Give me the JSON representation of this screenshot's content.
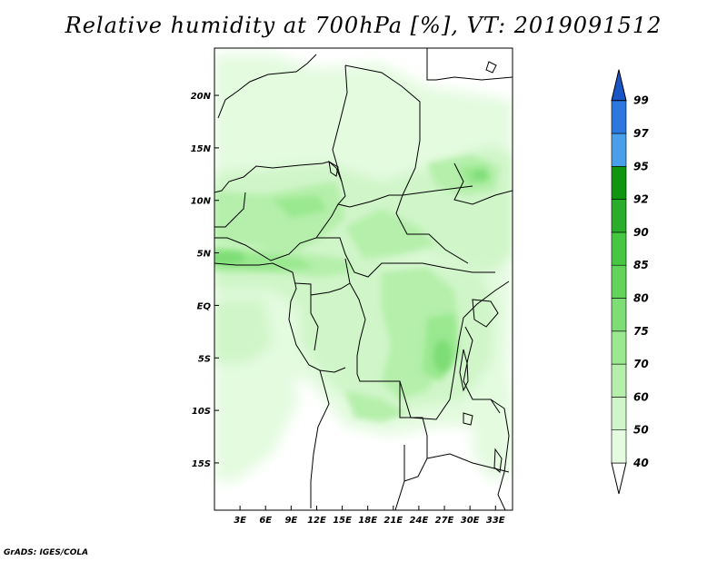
{
  "title": "Relative humidity at 700hPa [%], VT: 2019091512",
  "credit": "GrADS: IGES/COLA",
  "map": {
    "variable": "Relative humidity",
    "level": "700hPa",
    "units": "%",
    "valid_time": "2019091512",
    "lon_range": [
      0,
      35
    ],
    "lat_range": [
      -19.5,
      24.5
    ],
    "lat_ticks": [
      {
        "value": 20,
        "label": "20N"
      },
      {
        "value": 15,
        "label": "15N"
      },
      {
        "value": 10,
        "label": "10N"
      },
      {
        "value": 5,
        "label": "5N"
      },
      {
        "value": 0,
        "label": "EQ"
      },
      {
        "value": -5,
        "label": "5S"
      },
      {
        "value": -10,
        "label": "10S"
      },
      {
        "value": -15,
        "label": "15S"
      }
    ],
    "lon_ticks": [
      {
        "value": 3,
        "label": "3E"
      },
      {
        "value": 6,
        "label": "6E"
      },
      {
        "value": 9,
        "label": "9E"
      },
      {
        "value": 12,
        "label": "12E"
      },
      {
        "value": 15,
        "label": "15E"
      },
      {
        "value": 18,
        "label": "18E"
      },
      {
        "value": 21,
        "label": "21E"
      },
      {
        "value": 24,
        "label": "24E"
      },
      {
        "value": 27,
        "label": "27E"
      },
      {
        "value": 30,
        "label": "30E"
      },
      {
        "value": 33,
        "label": "33E"
      }
    ]
  },
  "colorbar": {
    "levels": [
      "40",
      "50",
      "60",
      "70",
      "75",
      "80",
      "85",
      "90",
      "92",
      "95",
      "97",
      "99"
    ],
    "colors": [
      "#ffffff",
      "#e4fbe0",
      "#cff5c8",
      "#b5efab",
      "#9ae890",
      "#7edd74",
      "#63d45a",
      "#45c742",
      "#2aad2a",
      "#109510",
      "#4a9fea",
      "#2c78de",
      "#1a55c8"
    ]
  }
}
